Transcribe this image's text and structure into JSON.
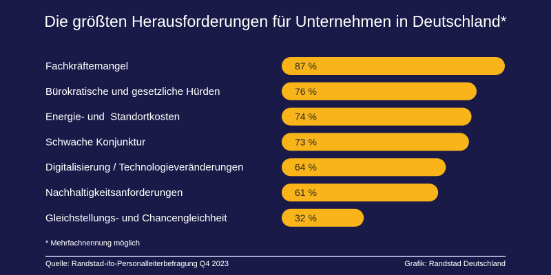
{
  "chart_data": {
    "type": "bar",
    "orientation": "horizontal",
    "title": "Die größten Herausforderungen für Unternehmen in Deutschland*",
    "categories": [
      "Fachkräftemangel",
      "Bürokratische und gesetzliche Hürden",
      "Energie- und  Standortkosten",
      "Schwache Konjunktur",
      "Digitalisierung / Technologieveränderungen",
      "Nachhaltigkeitsanforderungen",
      "Gleichstellungs- und Chancengleichheit"
    ],
    "values": [
      87,
      76,
      74,
      73,
      64,
      61,
      32
    ],
    "value_suffix": " %",
    "xlim": [
      0,
      87
    ],
    "grid": false,
    "colors": {
      "bar": "#f8b418",
      "background": "#1a1a48",
      "label": "#2a2a2a"
    }
  },
  "footnote": "* Mehrfachnennung möglich",
  "source": "Quelle: Randstad-ifo-Personalleiterbefragung Q4 2023",
  "credit": "Grafik: Randstad Deutschland"
}
